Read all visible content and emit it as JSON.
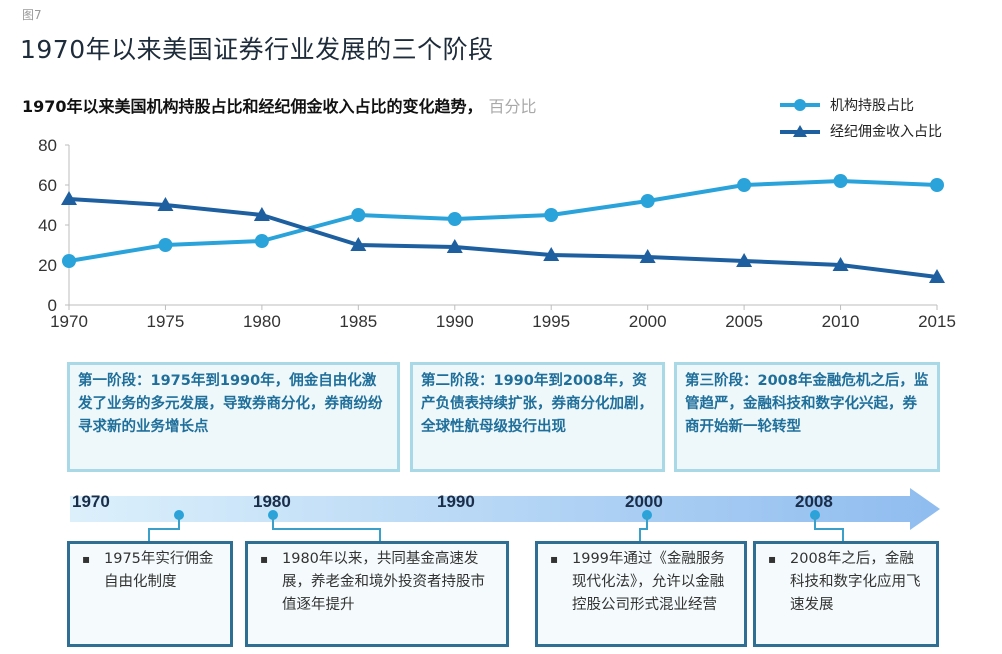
{
  "figure_label": "图7",
  "title": "1970年以来美国证券行业发展的三个阶段",
  "chart_title": "1970年以来美国机构持股占比和经纪佣金收入占比的变化趋势，",
  "chart_unit": "百分比",
  "legend": [
    {
      "label": "机构持股占比",
      "marker": "circle",
      "color": "#29a3d9"
    },
    {
      "label": "经纪佣金收入占比",
      "marker": "triangle",
      "color": "#1e5fa0"
    }
  ],
  "chart_data": {
    "type": "line",
    "title": "1970年以来美国机构持股占比和经纪佣金收入占比的变化趋势，百分比",
    "xlabel": "",
    "ylabel": "百分比",
    "x": [
      1970,
      1975,
      1980,
      1985,
      1990,
      1995,
      2000,
      2005,
      2010,
      2015
    ],
    "ylim": [
      0,
      80
    ],
    "yticks": [
      0,
      20,
      40,
      60,
      80
    ],
    "grid": false,
    "legend_position": "top-right",
    "series": [
      {
        "name": "机构持股占比",
        "marker": "circle",
        "color": "#29a3d9",
        "values": [
          22,
          30,
          32,
          45,
          43,
          45,
          52,
          60,
          62,
          60
        ]
      },
      {
        "name": "经纪佣金收入占比",
        "marker": "triangle",
        "color": "#1e5fa0",
        "values": [
          53,
          50,
          45,
          30,
          29,
          25,
          24,
          22,
          20,
          14
        ]
      }
    ]
  },
  "stages": [
    {
      "text": "第一阶段：1975年到1990年，佣金自由化激发了业务的多元发展，导致券商分化，券商纷纷寻求新的业务增长点"
    },
    {
      "text": "第二阶段：1990年到2008年，资产负债表持续扩张，券商分化加剧，全球性航母级投行出现"
    },
    {
      "text": "第三阶段：2008年金融危机之后，监管趋严，金融科技和数字化兴起，券商开始新一轮转型"
    }
  ],
  "timeline": {
    "years": [
      "1970",
      "1980",
      "1990",
      "2000",
      "2008"
    ]
  },
  "events": [
    {
      "bullet": "▪",
      "text": "1975年实行佣金自由化制度"
    },
    {
      "bullet": "▪",
      "text": "1980年以来，共同基金高速发展，养老金和境外投资者持股市值逐年提升"
    },
    {
      "bullet": "▪",
      "text": "1999年通过《金融服务现代化法》，允许以金融控股公司形式混业经营"
    },
    {
      "bullet": "▪",
      "text": "2008年之后，金融科技和数字化应用飞速发展"
    }
  ]
}
